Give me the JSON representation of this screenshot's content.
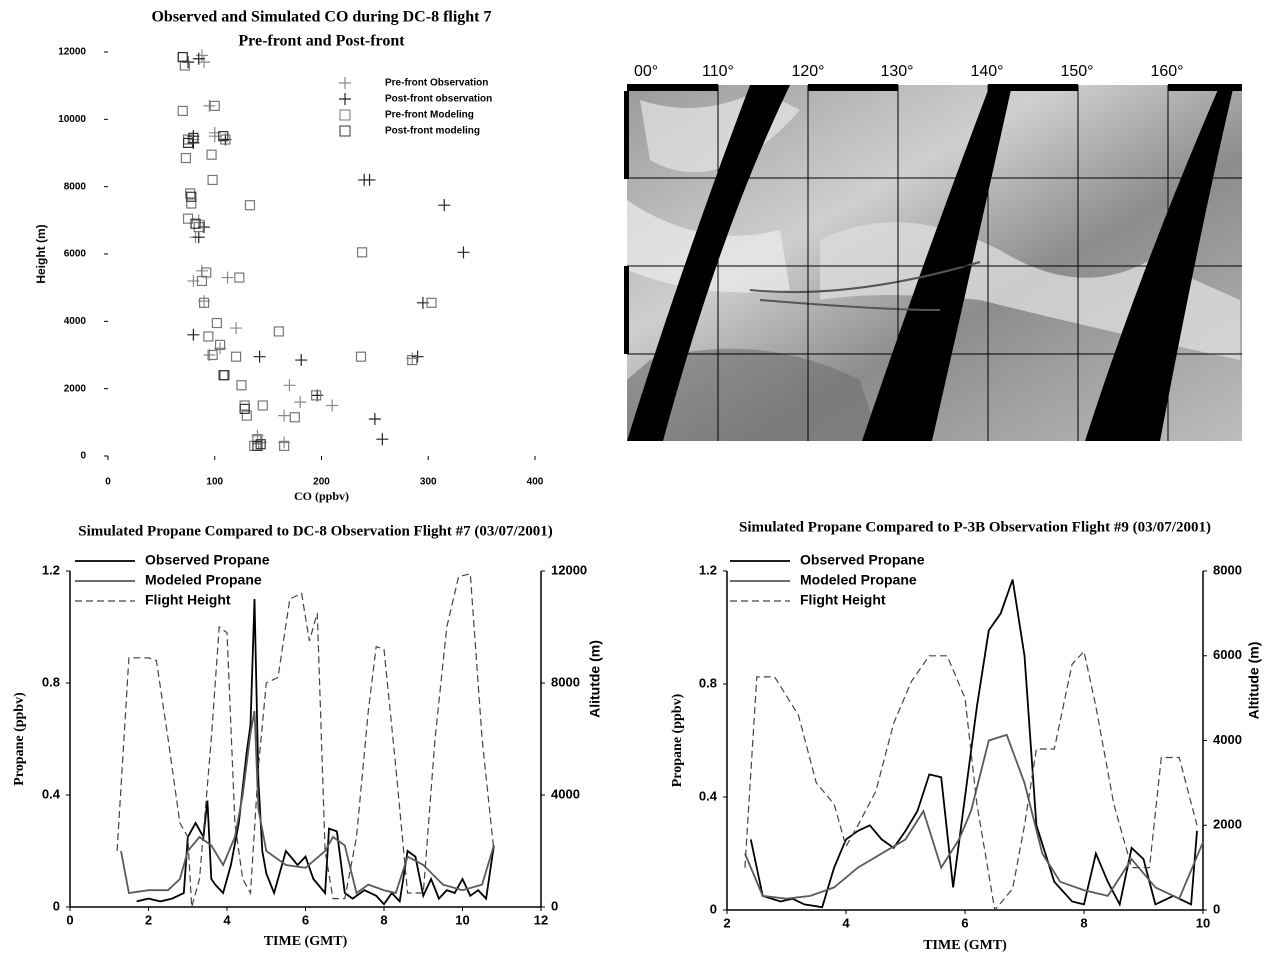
{
  "chart_data": [
    {
      "type": "scatter",
      "title": "Observed and Simulated CO during DC-8 flight 7",
      "subtitle": "Pre-front and Post-front",
      "x_label": "CO (ppbv)",
      "y_label": "Height (m)",
      "xlim": [
        0,
        400
      ],
      "xticks": [
        0,
        100,
        200,
        300,
        400
      ],
      "ylim": [
        0,
        12000
      ],
      "yticks": [
        0,
        2000,
        4000,
        6000,
        8000,
        10000,
        12000
      ],
      "legend": "upper right",
      "series": [
        {
          "name": "Pre-front Observation",
          "color": "#8a8a8a",
          "marker": "plus",
          "x": [
            88,
            90,
            95,
            100,
            80,
            85,
            82,
            88,
            112,
            90,
            120,
            105,
            95,
            170,
            180,
            210,
            165,
            140,
            143,
            165,
            80,
            285,
            100
          ],
          "values": [
            11900,
            11700,
            10400,
            9500,
            9400,
            7000,
            6500,
            5500,
            5300,
            4600,
            3800,
            3200,
            3000,
            2100,
            1600,
            1500,
            1200,
            600,
            400,
            400,
            5200,
            2900,
            9600
          ]
        },
        {
          "name": "Post-front observation",
          "color": "#222222",
          "marker": "plus",
          "x": [
            85,
            75,
            80,
            110,
            240,
            245,
            315,
            333,
            295,
            80,
            142,
            181,
            290,
            196,
            250,
            257,
            80,
            90,
            85
          ],
          "values": [
            11800,
            11700,
            9500,
            9400,
            8200,
            8200,
            7450,
            6050,
            4550,
            3600,
            2950,
            2850,
            2950,
            1800,
            1100,
            500,
            9300,
            6800,
            6500
          ]
        },
        {
          "name": "Pre-front Modeling",
          "color": "#777777",
          "marker": "square",
          "x": [
            70,
            72,
            70,
            100,
            75,
            110,
            73,
            97,
            98,
            77,
            78,
            133,
            75,
            85,
            238,
            123,
            88,
            90,
            160,
            102,
            94,
            105,
            98,
            237,
            285,
            120,
            108,
            125,
            128,
            145,
            130,
            175,
            140,
            137,
            165,
            195,
            303,
            92
          ],
          "values": [
            11850,
            11600,
            10250,
            10400,
            9400,
            9400,
            8850,
            8950,
            8200,
            7800,
            7500,
            7450,
            7050,
            6800,
            6050,
            5300,
            5200,
            4550,
            3700,
            3950,
            3550,
            3300,
            3000,
            2950,
            2850,
            2950,
            2400,
            2100,
            1500,
            1500,
            1200,
            1150,
            500,
            300,
            300,
            1800,
            4550,
            5450
          ]
        },
        {
          "name": "Post-front modeling",
          "color": "#333333",
          "marker": "square",
          "x": [
            70,
            80,
            75,
            108,
            78,
            82,
            109,
            140,
            143,
            128
          ],
          "values": [
            11850,
            9450,
            9300,
            9500,
            7700,
            6900,
            2400,
            300,
            350,
            1400
          ]
        }
      ]
    },
    {
      "type": "line",
      "title": "Simulated Propane Compared to DC-8 Observation Flight #7 (03/07/2001)",
      "x_label": "TIME (GMT)",
      "y_label": "Propane (ppbv)",
      "y2_label": "Alitutde (m)",
      "xlim": [
        0,
        12
      ],
      "xticks": [
        0,
        2,
        4,
        6,
        8,
        10,
        12
      ],
      "ylim": [
        0,
        1.2
      ],
      "yticks": [
        0,
        0.4,
        0.8,
        1.2
      ],
      "y2lim": [
        0,
        12000
      ],
      "y2ticks": [
        0,
        4000,
        8000,
        12000
      ],
      "legend": "upper left",
      "series": [
        {
          "name": "Observed Propane",
          "color": "#000000",
          "dash": false,
          "x": [
            1.7,
            2,
            2.3,
            2.6,
            2.9,
            3.0,
            3.2,
            3.4,
            3.5,
            3.6,
            3.7,
            3.9,
            4.1,
            4.3,
            4.5,
            4.6,
            4.7,
            4.8,
            4.9,
            5.0,
            5.2,
            5.5,
            5.8,
            6.0,
            6.2,
            6.5,
            6.6,
            6.8,
            7.0,
            7.2,
            7.5,
            7.8,
            8.0,
            8.2,
            8.4,
            8.6,
            8.8,
            9.0,
            9.2,
            9.4,
            9.6,
            9.8,
            10.0,
            10.2,
            10.4,
            10.6,
            10.8
          ],
          "values": [
            0.02,
            0.03,
            0.02,
            0.03,
            0.05,
            0.25,
            0.3,
            0.25,
            0.38,
            0.1,
            0.08,
            0.05,
            0.15,
            0.3,
            0.55,
            0.65,
            1.1,
            0.45,
            0.2,
            0.12,
            0.05,
            0.2,
            0.15,
            0.18,
            0.1,
            0.05,
            0.28,
            0.27,
            0.05,
            0.03,
            0.06,
            0.04,
            0.01,
            0.05,
            0.02,
            0.2,
            0.18,
            0.04,
            0.1,
            0.03,
            0.06,
            0.05,
            0.1,
            0.04,
            0.06,
            0.03,
            0.22
          ]
        },
        {
          "name": "Modeled Propane",
          "color": "#5a5a5a",
          "dash": false,
          "x": [
            1.3,
            1.5,
            2,
            2.5,
            2.8,
            3.0,
            3.3,
            3.6,
            3.9,
            4.2,
            4.4,
            4.6,
            4.7,
            4.8,
            5.0,
            5.5,
            6.0,
            6.5,
            6.7,
            7.0,
            7.3,
            7.6,
            8.0,
            8.3,
            8.6,
            9.0,
            9.5,
            10.0,
            10.5,
            10.8
          ],
          "values": [
            0.2,
            0.05,
            0.06,
            0.06,
            0.1,
            0.2,
            0.25,
            0.22,
            0.15,
            0.25,
            0.4,
            0.62,
            0.7,
            0.35,
            0.2,
            0.15,
            0.14,
            0.2,
            0.25,
            0.22,
            0.05,
            0.08,
            0.06,
            0.05,
            0.18,
            0.15,
            0.08,
            0.06,
            0.08,
            0.22
          ]
        },
        {
          "name": "Flight Height",
          "color": "#444444",
          "dash": true,
          "axis": "y2",
          "x": [
            1.2,
            1.5,
            2.0,
            2.2,
            2.5,
            2.8,
            3.0,
            3.1,
            3.3,
            3.6,
            3.8,
            4.0,
            4.2,
            4.4,
            4.6,
            4.8,
            5.0,
            5.3,
            5.6,
            5.9,
            6.1,
            6.3,
            6.5,
            6.7,
            7.0,
            7.3,
            7.6,
            7.8,
            8.0,
            8.3,
            8.6,
            9.0,
            9.3,
            9.6,
            9.9,
            10.2,
            10.5,
            10.8
          ],
          "values": [
            2000,
            8900,
            8900,
            8800,
            6000,
            3000,
            2500,
            0,
            1000,
            6000,
            10000,
            9800,
            3000,
            1000,
            500,
            5000,
            8000,
            8200,
            11000,
            11200,
            9500,
            10500,
            2000,
            300,
            300,
            2500,
            7000,
            9300,
            9200,
            5000,
            500,
            500,
            6000,
            10000,
            11800,
            11900,
            6000,
            2000
          ]
        }
      ]
    },
    {
      "type": "line",
      "title": "Simulated Propane Compared to P-3B Observation Flight #9 (03/07/2001)",
      "x_label": "TIME (GMT)",
      "y_label": "Propane (ppbv)",
      "y2_label": "Altitude (m)",
      "xlim": [
        2,
        10
      ],
      "xticks": [
        2,
        4,
        6,
        8,
        10
      ],
      "ylim": [
        0,
        1.2
      ],
      "yticks": [
        0,
        0.4,
        0.8,
        1.2
      ],
      "y2lim": [
        0,
        8000
      ],
      "y2ticks": [
        0,
        2000,
        4000,
        6000,
        8000
      ],
      "legend": "upper left",
      "series": [
        {
          "name": "Observed Propane",
          "color": "#000000",
          "dash": false,
          "x": [
            2.4,
            2.6,
            2.9,
            3.1,
            3.3,
            3.6,
            3.8,
            4.0,
            4.2,
            4.4,
            4.6,
            4.8,
            5.0,
            5.2,
            5.4,
            5.6,
            5.8,
            6.0,
            6.2,
            6.4,
            6.6,
            6.8,
            7.0,
            7.2,
            7.5,
            7.8,
            8.0,
            8.2,
            8.4,
            8.6,
            8.8,
            9.0,
            9.2,
            9.5,
            9.8,
            9.9
          ],
          "values": [
            0.25,
            0.05,
            0.03,
            0.04,
            0.02,
            0.01,
            0.15,
            0.25,
            0.28,
            0.3,
            0.25,
            0.22,
            0.28,
            0.35,
            0.48,
            0.47,
            0.08,
            0.4,
            0.72,
            0.99,
            1.05,
            1.17,
            0.9,
            0.3,
            0.1,
            0.03,
            0.02,
            0.2,
            0.1,
            0.02,
            0.22,
            0.18,
            0.02,
            0.05,
            0.02,
            0.28
          ]
        },
        {
          "name": "Modeled Propane",
          "color": "#5a5a5a",
          "dash": false,
          "x": [
            2.3,
            2.6,
            3.0,
            3.4,
            3.8,
            4.2,
            4.6,
            5.0,
            5.3,
            5.6,
            5.9,
            6.1,
            6.4,
            6.7,
            7.0,
            7.3,
            7.6,
            8.0,
            8.4,
            8.8,
            9.2,
            9.6,
            10.0
          ],
          "values": [
            0.2,
            0.05,
            0.04,
            0.05,
            0.08,
            0.15,
            0.2,
            0.25,
            0.35,
            0.15,
            0.25,
            0.35,
            0.6,
            0.62,
            0.45,
            0.2,
            0.1,
            0.07,
            0.05,
            0.18,
            0.08,
            0.04,
            0.24
          ]
        },
        {
          "name": "Flight Height",
          "color": "#444444",
          "dash": true,
          "axis": "y2",
          "x": [
            2.3,
            2.5,
            2.8,
            3.2,
            3.5,
            3.8,
            4.0,
            4.2,
            4.5,
            4.8,
            5.1,
            5.4,
            5.7,
            6.0,
            6.2,
            6.5,
            6.8,
            7.0,
            7.2,
            7.5,
            7.8,
            8.0,
            8.2,
            8.5,
            8.8,
            9.1,
            9.3,
            9.6,
            9.9
          ],
          "values": [
            1000,
            5500,
            5500,
            4600,
            3000,
            2500,
            1500,
            2000,
            2800,
            4400,
            5400,
            6000,
            6000,
            5000,
            2500,
            0,
            500,
            2000,
            3800,
            3800,
            5800,
            6100,
            4800,
            2500,
            1000,
            1000,
            3600,
            3600,
            2000
          ]
        }
      ]
    }
  ],
  "map": {
    "longitude_labels": [
      "00°",
      "110°",
      "120°",
      "130°",
      "140°",
      "150°",
      "160°"
    ]
  }
}
